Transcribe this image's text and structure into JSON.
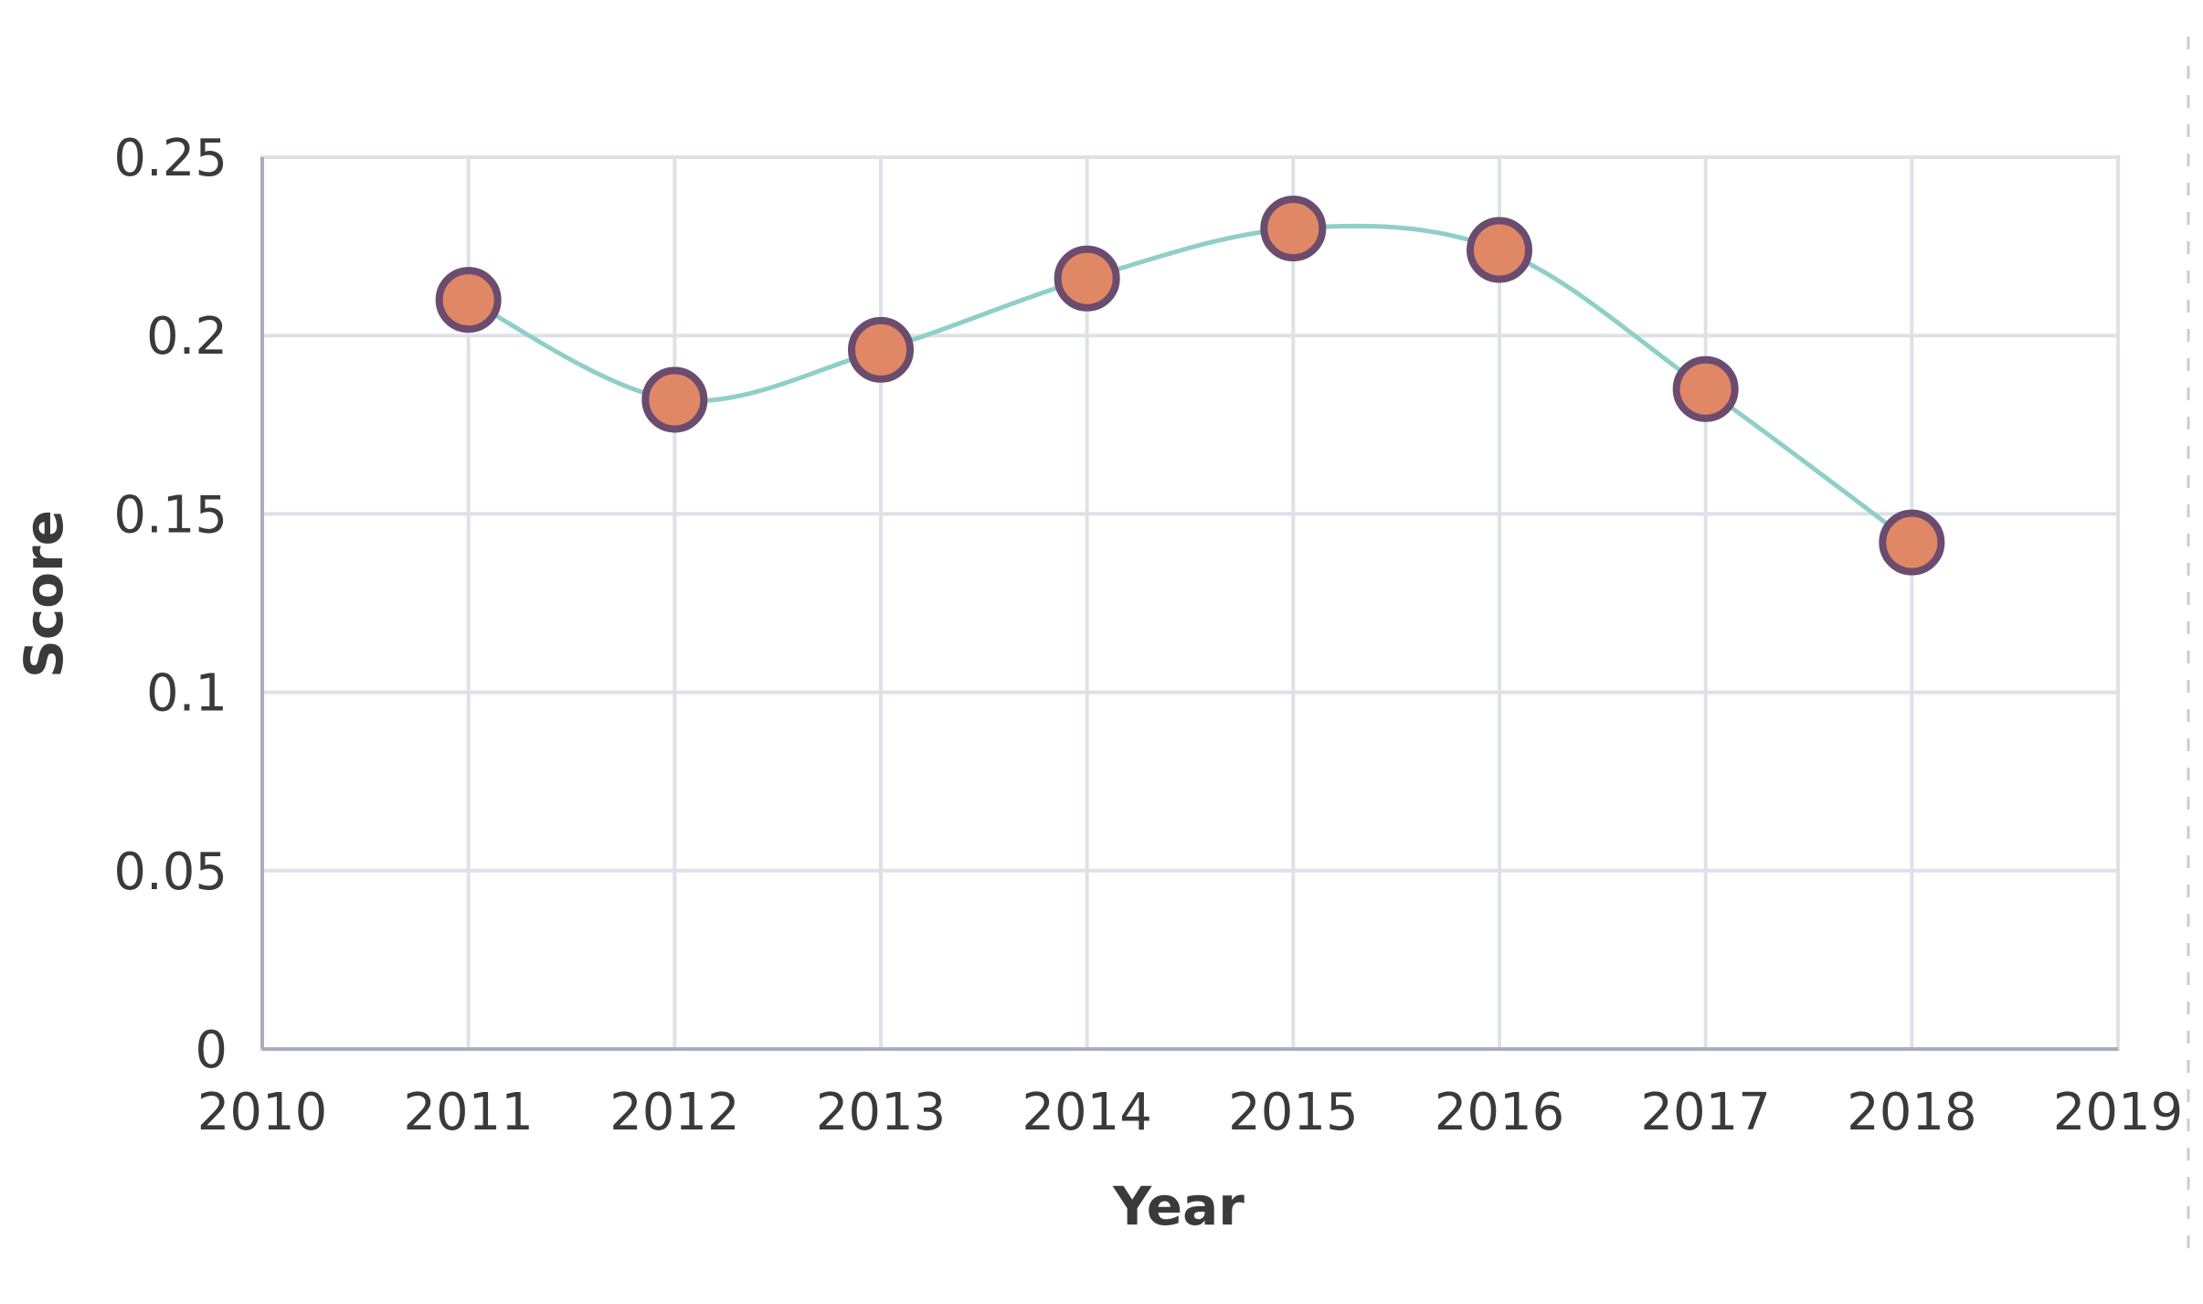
{
  "chart_data": {
    "type": "line",
    "title": "",
    "xlabel": "Year",
    "ylabel": "Score",
    "xlim": [
      2010,
      2019
    ],
    "ylim": [
      0,
      0.25
    ],
    "x_ticks": [
      "2010",
      "2011",
      "2012",
      "2013",
      "2014",
      "2015",
      "2016",
      "2017",
      "2018",
      "2019"
    ],
    "y_ticks": [
      "0",
      "0.05",
      "0.1",
      "0.15",
      "0.2",
      "0.25"
    ],
    "x": [
      2011,
      2012,
      2013,
      2014,
      2015,
      2016,
      2017,
      2018
    ],
    "series": [
      {
        "values": [
          0.21,
          0.182,
          0.196,
          0.216,
          0.23,
          0.224,
          0.185,
          0.142
        ]
      }
    ],
    "grid": true,
    "legend": "none",
    "smooth": true,
    "colors": {
      "line": "#8fcfc8",
      "marker_fill": "#e08866",
      "marker_stroke": "#6b4c6e"
    }
  }
}
